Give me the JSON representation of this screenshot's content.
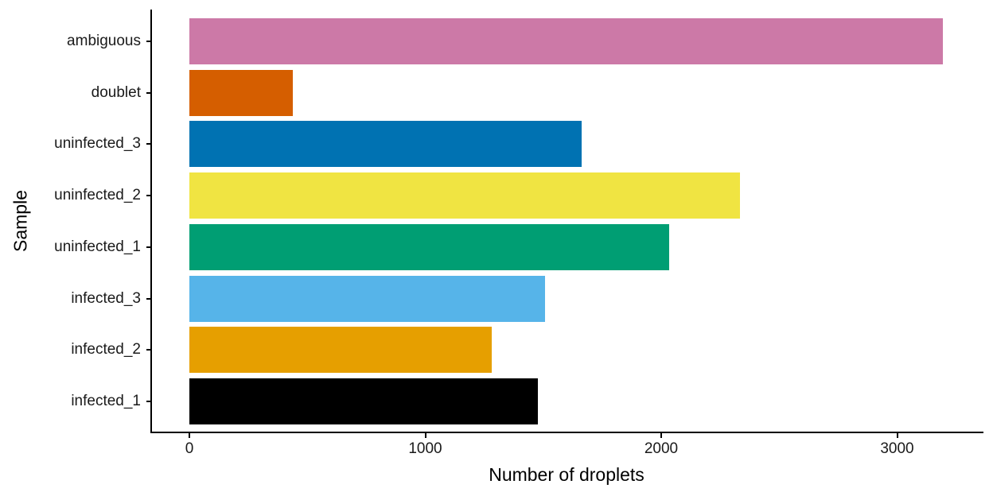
{
  "chart_data": {
    "type": "bar",
    "orientation": "horizontal",
    "title": "",
    "xlabel": "Number of droplets",
    "ylabel": "Sample",
    "xlim": [
      -160,
      3380
    ],
    "xticks": [
      0,
      1000,
      2000,
      3000
    ],
    "xtick_labels": [
      "0",
      "1000",
      "2000",
      "3000"
    ],
    "grid": false,
    "legend": null,
    "categories": [
      "ambiguous",
      "doublet",
      "uninfected_3",
      "uninfected_2",
      "uninfected_1",
      "infected_3",
      "infected_2",
      "infected_1"
    ],
    "values": [
      3195,
      438,
      1663,
      2333,
      2034,
      1508,
      1283,
      1478
    ],
    "colors": [
      "#CC79A7",
      "#D55E00",
      "#0072B2",
      "#F0E442",
      "#009E73",
      "#56B4E9",
      "#E69F00",
      "#000000"
    ]
  }
}
